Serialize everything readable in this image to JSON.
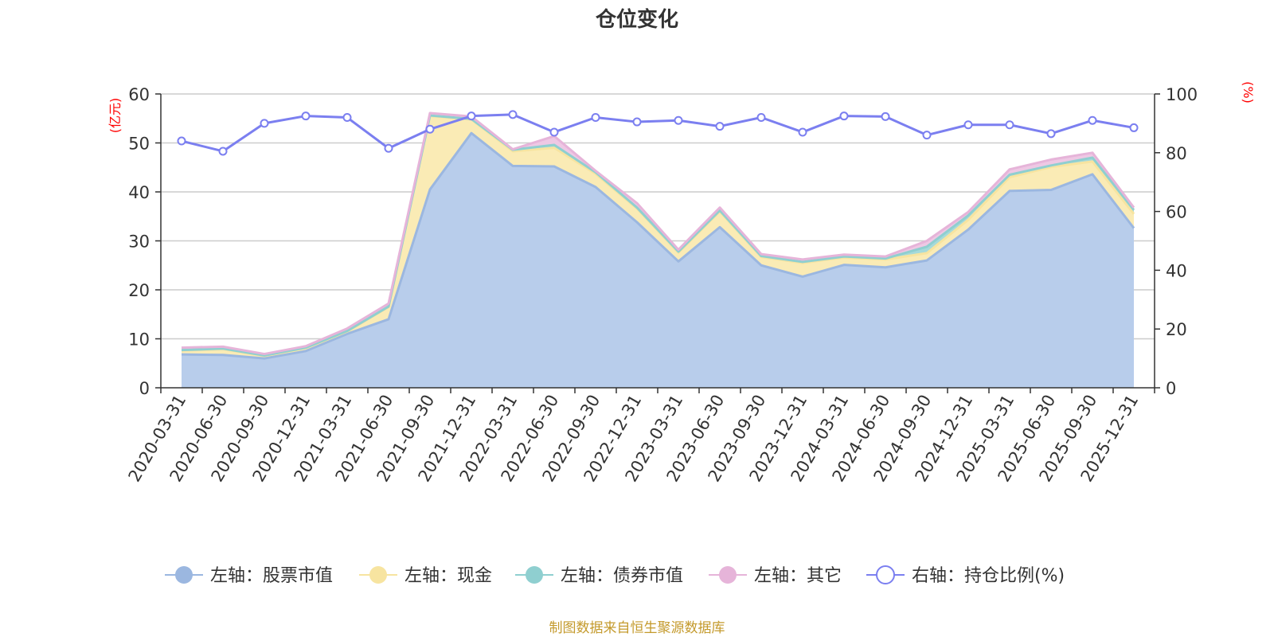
{
  "chart_data": {
    "type": "area",
    "title": "仓位变化",
    "categories": [
      "2020-03-31",
      "2020-06-30",
      "2020-09-30",
      "2020-12-31",
      "2021-03-31",
      "2021-06-30",
      "2021-09-30",
      "2021-12-31",
      "2022-03-31",
      "2022-06-30",
      "2022-09-30",
      "2022-12-31",
      "2023-03-31",
      "2023-06-30",
      "2023-09-30",
      "2023-12-31",
      "2024-03-31",
      "2024-06-30",
      "2024-09-30",
      "2024-12-31",
      "2025-03-31",
      "2025-06-30",
      "2025-09-30",
      "2025-12-31"
    ],
    "left_axis": {
      "unit": "(亿元)",
      "ylim": [
        0,
        60
      ],
      "ticks": [
        0,
        10,
        20,
        30,
        40,
        50,
        60
      ]
    },
    "right_axis": {
      "unit": "(%)",
      "ylim": [
        0,
        100
      ],
      "ticks": [
        0,
        20,
        40,
        60,
        80,
        100
      ]
    },
    "stacked_series": [
      {
        "name": "左轴：股票市值",
        "color": "#9bb7e0",
        "fill": "#b8cdeb",
        "values": [
          6.8,
          6.7,
          6.0,
          7.5,
          11.0,
          14.0,
          40.5,
          52.0,
          45.3,
          45.2,
          41.0,
          33.8,
          25.8,
          32.8,
          25.0,
          22.7,
          25.1,
          24.6,
          26.0,
          32.3,
          40.2,
          40.4,
          43.6,
          32.6
        ]
      },
      {
        "name": "左轴：现金",
        "color": "#f7e4a0",
        "fill": "#faebb5",
        "values": [
          0.8,
          1.2,
          0.5,
          0.6,
          0.5,
          2.5,
          15.0,
          2.8,
          3.0,
          3.8,
          2.7,
          2.8,
          1.8,
          3.2,
          1.7,
          2.8,
          1.5,
          1.6,
          1.5,
          2.0,
          2.8,
          4.7,
          2.6,
          2.9
        ]
      },
      {
        "name": "左轴：债券市值",
        "color": "#8fcfd0",
        "fill": "#a6dada",
        "values": [
          0.1,
          0.1,
          0.1,
          0.1,
          0.1,
          0.1,
          0.1,
          0.1,
          0.3,
          0.6,
          0.3,
          0.2,
          0.2,
          0.2,
          0.2,
          0.2,
          0.2,
          0.2,
          1.3,
          0.9,
          0.5,
          0.3,
          0.8,
          0.8
        ]
      },
      {
        "name": "左轴：其它",
        "color": "#e6b4d9",
        "fill": "#eec8e4",
        "values": [
          0.5,
          0.4,
          0.3,
          0.3,
          0.5,
          0.6,
          0.5,
          0.5,
          0.1,
          1.8,
          0.3,
          0.9,
          0.4,
          0.6,
          0.4,
          0.5,
          0.4,
          0.4,
          1.2,
          0.7,
          1.1,
          1.2,
          1.0,
          0.5
        ]
      }
    ],
    "line_series": {
      "name": "右轴：持仓比例(%)",
      "color": "#7b7ff0",
      "values": [
        84.0,
        80.5,
        90.0,
        92.5,
        92.0,
        81.5,
        88.0,
        92.5,
        93.0,
        87.0,
        92.0,
        90.5,
        91.0,
        89.0,
        92.0,
        87.0,
        92.5,
        92.3,
        86.0,
        89.5,
        89.5,
        86.5,
        91.0,
        88.5
      ]
    },
    "legend_position": "bottom-center",
    "grid": true
  },
  "footer": {
    "source": "制图数据来自恒生聚源数据库"
  }
}
